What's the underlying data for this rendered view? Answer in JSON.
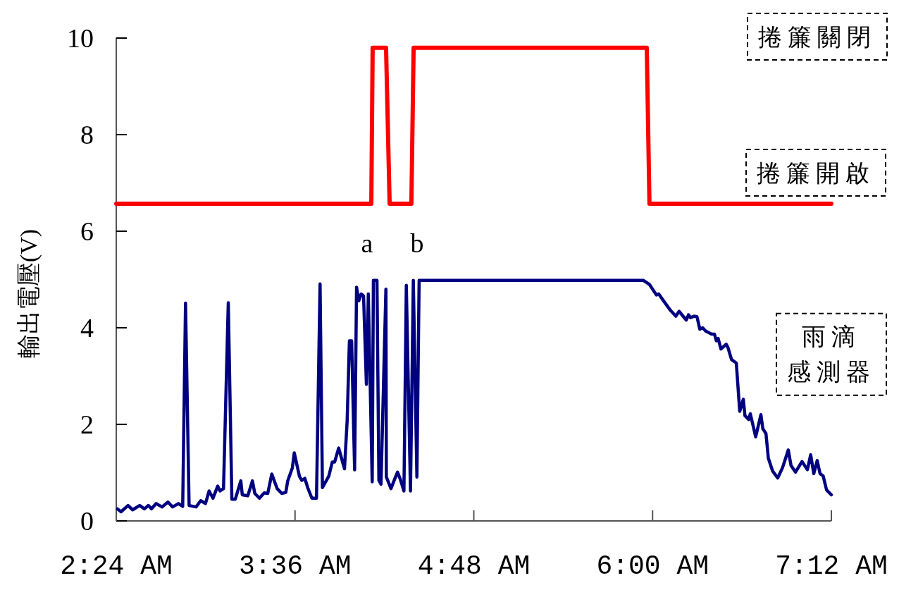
{
  "chart_data": {
    "type": "line",
    "ylabel": "輸出電壓(V)",
    "xlim": [
      2.4,
      7.2
    ],
    "ylim": [
      0,
      10
    ],
    "yticks": [
      0,
      2,
      4,
      6,
      8,
      10
    ],
    "xticks": [
      {
        "value": 2.4,
        "label": "2:24 AM"
      },
      {
        "value": 3.6,
        "label": "3:36 AM"
      },
      {
        "value": 4.8,
        "label": "4:48 AM"
      },
      {
        "value": 6.0,
        "label": "6:00 AM"
      },
      {
        "value": 7.2,
        "label": "7:12 AM"
      }
    ],
    "series": [
      {
        "color": "#ff0000",
        "x": [
          2.4,
          4.112,
          4.121,
          4.211,
          4.235,
          4.381,
          4.396,
          5.961,
          5.979,
          7.2
        ],
        "values": [
          6.57,
          6.57,
          9.8,
          9.8,
          6.57,
          6.57,
          9.8,
          9.8,
          6.57,
          6.57
        ]
      },
      {
        "name": "雨滴感測器",
        "color": "#000080",
        "x": [
          2.408,
          2.432,
          2.479,
          2.51,
          2.557,
          2.589,
          2.616,
          2.636,
          2.668,
          2.707,
          2.747,
          2.778,
          2.818,
          2.846,
          2.865,
          2.889,
          2.936,
          2.967,
          2.999,
          3.023,
          3.049,
          3.081,
          3.097,
          3.12,
          3.152,
          3.176,
          3.199,
          3.236,
          3.246,
          3.283,
          3.314,
          3.33,
          3.361,
          3.393,
          3.417,
          3.444,
          3.48,
          3.511,
          3.538,
          3.551,
          3.582,
          3.595,
          3.63,
          3.645,
          3.666,
          3.685,
          3.713,
          3.744,
          3.768,
          3.784,
          3.827,
          3.85,
          3.866,
          3.893,
          3.932,
          3.95,
          3.965,
          3.98,
          4.0,
          4.013,
          4.028,
          4.044,
          4.06,
          4.079,
          4.092,
          4.118,
          4.126,
          4.15,
          4.163,
          4.177,
          4.21,
          4.213,
          4.244,
          4.268,
          4.288,
          4.307,
          4.331,
          4.347,
          4.375,
          4.394,
          4.418,
          4.433,
          5.939,
          5.978,
          6.026,
          6.041,
          6.073,
          6.12,
          6.156,
          6.178,
          6.226,
          6.241,
          6.254,
          6.278,
          6.298,
          6.317,
          6.336,
          6.357,
          6.396,
          6.415,
          6.428,
          6.44,
          6.459,
          6.494,
          6.506,
          6.53,
          6.562,
          6.585,
          6.609,
          6.62,
          6.645,
          6.656,
          6.692,
          6.727,
          6.74,
          6.761,
          6.777,
          6.806,
          6.84,
          6.872,
          6.911,
          6.929,
          6.959,
          7.003,
          7.039,
          7.061,
          7.082,
          7.105,
          7.124,
          7.145,
          7.168,
          7.2
        ],
        "values": [
          0.25,
          0.19,
          0.32,
          0.23,
          0.32,
          0.25,
          0.32,
          0.25,
          0.36,
          0.29,
          0.39,
          0.29,
          0.36,
          0.3,
          4.51,
          0.32,
          0.29,
          0.42,
          0.36,
          0.62,
          0.47,
          0.72,
          0.62,
          0.67,
          4.52,
          0.45,
          0.45,
          0.83,
          0.54,
          0.52,
          0.83,
          0.57,
          0.47,
          0.58,
          0.57,
          0.97,
          0.67,
          0.57,
          0.59,
          0.83,
          1.1,
          1.41,
          0.92,
          0.84,
          0.88,
          0.69,
          0.47,
          0.47,
          4.91,
          0.69,
          0.93,
          1.22,
          1.22,
          1.51,
          1.08,
          2.08,
          3.73,
          3.73,
          1.06,
          4.84,
          4.56,
          4.7,
          4.66,
          2.83,
          4.7,
          0.81,
          4.98,
          4.98,
          0.84,
          0.76,
          4.8,
          0.91,
          0.67,
          0.86,
          1.01,
          0.86,
          0.62,
          4.88,
          0.62,
          4.98,
          0.91,
          4.98,
          4.98,
          4.9,
          4.68,
          4.7,
          4.56,
          4.36,
          4.24,
          4.34,
          4.16,
          4.27,
          4.21,
          4.24,
          4.23,
          3.97,
          4.0,
          3.93,
          3.87,
          3.87,
          3.73,
          3.78,
          3.56,
          3.66,
          3.59,
          3.34,
          3.27,
          2.27,
          2.52,
          2.18,
          2.1,
          2.22,
          1.74,
          2.2,
          1.91,
          1.81,
          1.3,
          1.03,
          0.89,
          1.1,
          1.47,
          1.15,
          1.01,
          1.23,
          1.06,
          1.37,
          0.98,
          1.25,
          0.98,
          0.93,
          0.64,
          0.54
        ]
      }
    ],
    "annotations": [
      "a",
      "b",
      "捲簾關閉",
      "捲簾開啟"
    ]
  }
}
